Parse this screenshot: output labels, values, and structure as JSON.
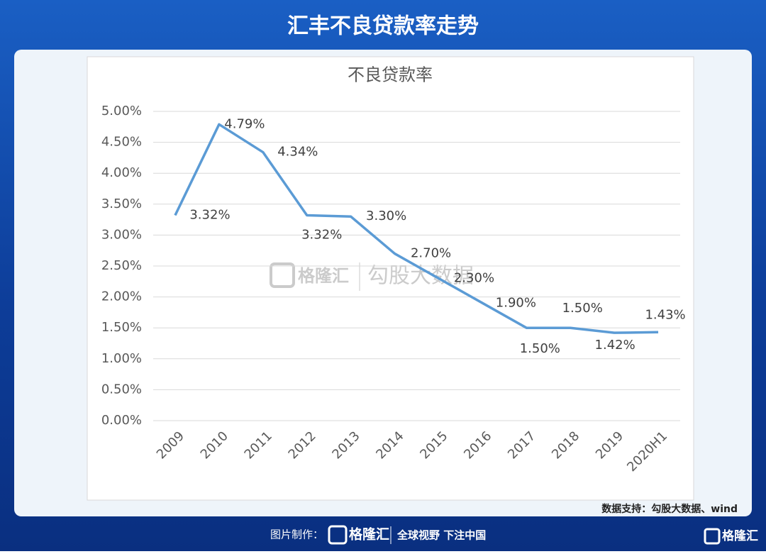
{
  "header": {
    "title": "汇丰不良贷款率走势"
  },
  "chart_data": {
    "type": "line",
    "title": "不良贷款率",
    "categories": [
      "2009",
      "2010",
      "2011",
      "2012",
      "2013",
      "2014",
      "2015",
      "2016",
      "2017",
      "2018",
      "2019",
      "2020H1"
    ],
    "series": [
      {
        "name": "不良贷款率",
        "color": "#5b9bd5",
        "values": [
          3.32,
          4.79,
          4.34,
          3.32,
          3.3,
          2.7,
          2.3,
          1.9,
          1.5,
          1.5,
          1.42,
          1.43
        ],
        "value_labels": [
          "3.32%",
          "4.79%",
          "4.34%",
          "3.32%",
          "3.30%",
          "2.70%",
          "2.30%",
          "1.90%",
          "1.50%",
          "1.50%",
          "1.42%",
          "1.43%"
        ]
      }
    ],
    "ylim": [
      0,
      5
    ],
    "yticks": [
      {
        "value": 0,
        "label": "0.00%"
      },
      {
        "value": 0.5,
        "label": "0.50%"
      },
      {
        "value": 1,
        "label": "1.00%"
      },
      {
        "value": 1.5,
        "label": "1.50%"
      },
      {
        "value": 2,
        "label": "2.00%"
      },
      {
        "value": 2.5,
        "label": "2.50%"
      },
      {
        "value": 3,
        "label": "3.00%"
      },
      {
        "value": 3.5,
        "label": "3.50%"
      },
      {
        "value": 4,
        "label": "4.00%"
      },
      {
        "value": 4.5,
        "label": "4.50%"
      },
      {
        "value": 5,
        "label": "5.00%"
      }
    ],
    "grid": true
  },
  "watermark": {
    "brand": "格隆汇",
    "text": "勾股大数据"
  },
  "source": "数据支持：勾股大数据、wind",
  "footer": {
    "credit": "图片制作：",
    "brand": "格隆汇",
    "slogan": "全球视野 下注中国",
    "corner_brand": "格隆汇"
  }
}
